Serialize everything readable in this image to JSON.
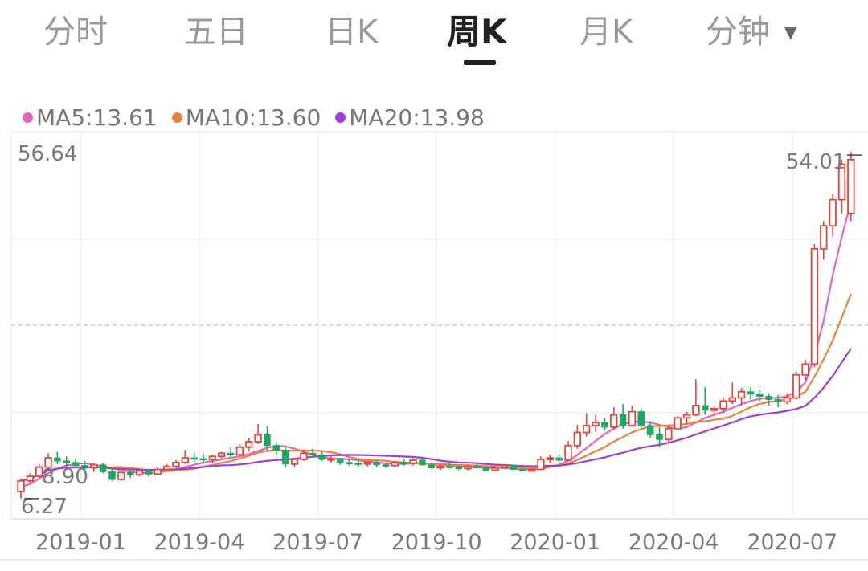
{
  "tabs": [
    {
      "label": "分时"
    },
    {
      "label": "五日"
    },
    {
      "label": "日K"
    },
    {
      "label": "周K"
    },
    {
      "label": "月K"
    },
    {
      "label": "分钟"
    }
  ],
  "active_tab": "周K",
  "legend": [
    {
      "label": "MA5:13.61",
      "color": "#e066b8"
    },
    {
      "label": "MA10:13.60",
      "color": "#e8843a"
    },
    {
      "label": "MA20:13.98",
      "color": "#9b3fd8"
    }
  ],
  "colors": {
    "up": "#e0473c",
    "down": "#1fa862",
    "grid": "#eeeeee",
    "text": "#7a7a7a"
  },
  "chart_data": {
    "type": "candlestick",
    "y_axis": {
      "max_label": "56.64",
      "min_label": "6.27",
      "ylim": [
        6.27,
        56.64
      ]
    },
    "x_ticks": [
      "2019-01",
      "2019-04",
      "2019-07",
      "2019-10",
      "2020-01",
      "2020-04",
      "2020-07"
    ],
    "x_tick_index": [
      7,
      20,
      33,
      46,
      59,
      72,
      85
    ],
    "high_label": "54.01",
    "low_label": "8.90",
    "candles": [
      [
        9.8,
        11.5,
        8.9,
        11.2
      ],
      [
        11.2,
        12.2,
        10.8,
        11.8
      ],
      [
        11.8,
        13.4,
        11.4,
        13.0
      ],
      [
        13.0,
        14.8,
        12.6,
        14.2
      ],
      [
        14.2,
        15.0,
        13.4,
        13.8
      ],
      [
        13.8,
        14.4,
        13.0,
        13.6
      ],
      [
        13.6,
        14.0,
        12.8,
        13.2
      ],
      [
        13.2,
        13.8,
        12.4,
        12.9
      ],
      [
        12.9,
        13.6,
        12.4,
        13.3
      ],
      [
        13.3,
        13.6,
        12.2,
        12.4
      ],
      [
        12.4,
        12.8,
        11.2,
        11.4
      ],
      [
        11.4,
        12.6,
        11.2,
        12.3
      ],
      [
        12.3,
        12.8,
        11.6,
        12.0
      ],
      [
        12.0,
        12.8,
        11.8,
        12.5
      ],
      [
        12.5,
        12.6,
        11.8,
        12.1
      ],
      [
        12.1,
        13.0,
        11.9,
        12.7
      ],
      [
        12.7,
        13.4,
        12.5,
        13.1
      ],
      [
        13.1,
        13.9,
        12.9,
        13.6
      ],
      [
        13.6,
        15.2,
        13.4,
        14.2
      ],
      [
        14.2,
        14.9,
        13.6,
        14.1
      ],
      [
        14.1,
        14.7,
        13.5,
        14.0
      ],
      [
        14.0,
        14.6,
        13.6,
        14.4
      ],
      [
        14.4,
        15.0,
        14.1,
        14.8
      ],
      [
        14.8,
        15.6,
        14.3,
        14.6
      ],
      [
        14.6,
        16.0,
        14.4,
        15.6
      ],
      [
        15.6,
        16.8,
        15.0,
        16.3
      ],
      [
        16.3,
        18.6,
        16.0,
        17.2
      ],
      [
        17.2,
        18.3,
        15.0,
        15.8
      ],
      [
        15.8,
        16.2,
        14.6,
        15.2
      ],
      [
        15.2,
        15.6,
        13.0,
        13.4
      ],
      [
        13.4,
        14.2,
        13.0,
        14.0
      ],
      [
        14.0,
        15.2,
        13.8,
        14.8
      ],
      [
        14.8,
        15.4,
        14.2,
        14.6
      ],
      [
        14.6,
        15.0,
        13.8,
        14.0
      ],
      [
        14.0,
        14.4,
        13.6,
        14.1
      ],
      [
        14.1,
        14.2,
        13.3,
        13.6
      ],
      [
        13.6,
        14.0,
        13.2,
        13.5
      ],
      [
        13.5,
        13.9,
        13.0,
        13.4
      ],
      [
        13.4,
        13.8,
        13.1,
        13.6
      ],
      [
        13.6,
        13.9,
        13.0,
        13.3
      ],
      [
        13.3,
        13.6,
        12.9,
        13.2
      ],
      [
        13.2,
        13.8,
        13.0,
        13.6
      ],
      [
        13.6,
        14.0,
        13.2,
        13.5
      ],
      [
        13.5,
        14.1,
        13.2,
        13.9
      ],
      [
        13.9,
        14.2,
        13.2,
        13.3
      ],
      [
        13.3,
        13.6,
        12.8,
        12.9
      ],
      [
        12.9,
        13.3,
        12.6,
        13.1
      ],
      [
        13.1,
        13.4,
        12.8,
        13.0
      ],
      [
        13.0,
        13.2,
        12.6,
        12.8
      ],
      [
        12.8,
        13.3,
        12.6,
        13.1
      ],
      [
        13.1,
        13.4,
        12.8,
        12.9
      ],
      [
        12.9,
        13.2,
        12.5,
        12.6
      ],
      [
        12.6,
        13.1,
        12.5,
        12.9
      ],
      [
        12.9,
        13.4,
        12.8,
        13.2
      ],
      [
        13.2,
        13.3,
        12.6,
        12.7
      ],
      [
        12.7,
        12.9,
        12.4,
        12.5
      ],
      [
        12.5,
        12.8,
        12.4,
        12.7
      ],
      [
        12.7,
        14.4,
        12.6,
        14.0
      ],
      [
        14.0,
        14.6,
        13.6,
        14.2
      ],
      [
        14.2,
        14.6,
        13.7,
        13.9
      ],
      [
        13.9,
        16.4,
        13.8,
        15.8
      ],
      [
        15.8,
        18.5,
        15.4,
        17.5
      ],
      [
        17.5,
        20.0,
        17.0,
        18.4
      ],
      [
        18.4,
        19.8,
        17.6,
        18.8
      ],
      [
        18.8,
        19.4,
        17.8,
        18.2
      ],
      [
        18.2,
        20.8,
        17.8,
        19.8
      ],
      [
        19.8,
        21.2,
        18.0,
        18.4
      ],
      [
        18.4,
        21.0,
        18.2,
        20.2
      ],
      [
        20.2,
        20.6,
        18.0,
        18.4
      ],
      [
        18.4,
        19.0,
        16.8,
        17.2
      ],
      [
        17.2,
        18.2,
        15.6,
        16.6
      ],
      [
        16.6,
        18.4,
        16.3,
        18.0
      ],
      [
        18.0,
        19.6,
        17.8,
        19.4
      ],
      [
        19.4,
        20.2,
        18.6,
        19.8
      ],
      [
        19.8,
        24.4,
        19.6,
        21.0
      ],
      [
        21.0,
        23.4,
        19.8,
        20.4
      ],
      [
        20.4,
        21.0,
        19.6,
        20.6
      ],
      [
        20.6,
        22.0,
        20.0,
        21.6
      ],
      [
        21.6,
        24.0,
        21.2,
        22.0
      ],
      [
        22.0,
        23.3,
        21.0,
        22.8
      ],
      [
        22.8,
        23.4,
        21.8,
        22.5
      ],
      [
        22.5,
        23.0,
        21.6,
        22.2
      ],
      [
        22.2,
        22.6,
        21.0,
        21.8
      ],
      [
        21.8,
        22.4,
        20.8,
        21.5
      ],
      [
        21.5,
        22.6,
        21.2,
        22.0
      ],
      [
        22.0,
        25.4,
        21.8,
        25.0
      ],
      [
        25.0,
        27.0,
        24.2,
        26.4
      ],
      [
        26.4,
        42.0,
        26.0,
        41.4
      ],
      [
        41.4,
        45.0,
        40.0,
        44.4
      ],
      [
        44.4,
        48.6,
        43.0,
        47.8
      ],
      [
        47.8,
        53.0,
        46.0,
        52.4
      ],
      [
        46.0,
        54.01,
        45.0,
        53.0
      ]
    ],
    "ma5": [
      10.4,
      10.8,
      11.5,
      12.2,
      12.8,
      13.2,
      13.4,
      13.5,
      13.3,
      13.1,
      12.9,
      12.6,
      12.4,
      12.3,
      12.2,
      12.3,
      12.5,
      12.7,
      13.0,
      13.3,
      13.6,
      13.8,
      14.0,
      14.2,
      14.4,
      14.7,
      15.1,
      15.5,
      15.8,
      15.7,
      15.4,
      15.0,
      14.6,
      14.3,
      14.1,
      14.1,
      14.0,
      13.9,
      13.7,
      13.6,
      13.5,
      13.4,
      13.4,
      13.5,
      13.5,
      13.4,
      13.3,
      13.2,
      13.1,
      13.0,
      13.0,
      12.9,
      12.9,
      12.9,
      12.8,
      12.7,
      12.7,
      12.8,
      13.0,
      13.3,
      13.8,
      14.6,
      15.5,
      16.4,
      17.3,
      18.0,
      18.6,
      18.9,
      18.9,
      18.8,
      18.5,
      18.2,
      18.0,
      18.2,
      18.8,
      19.4,
      19.8,
      20.2,
      20.7,
      21.2,
      21.6,
      21.9,
      22.0,
      22.0,
      22.2,
      22.8,
      24.0,
      27.5,
      32.0,
      38.0,
      43.0,
      47.5
    ]
  }
}
